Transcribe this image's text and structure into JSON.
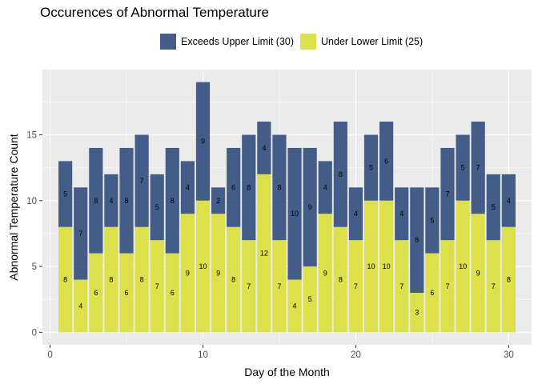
{
  "chart_data": {
    "type": "bar",
    "stacked": true,
    "title": "Occurences of Abnormal Temperature",
    "xlabel": "Day of the Month",
    "ylabel": "Abnormal Temperature Count",
    "x": [
      1,
      2,
      3,
      4,
      5,
      6,
      7,
      8,
      9,
      10,
      11,
      12,
      13,
      14,
      15,
      16,
      17,
      18,
      19,
      20,
      21,
      22,
      23,
      24,
      25,
      26,
      27,
      28,
      29,
      30
    ],
    "xlim": [
      -0.5,
      31.5
    ],
    "ylim": [
      -0.95,
      19.95
    ],
    "xticks": [
      0,
      10,
      20,
      30
    ],
    "yticks": [
      0,
      5,
      10,
      15
    ],
    "grid": true,
    "legend_position": "top",
    "series": [
      {
        "name": "Under Lower Limit (25)",
        "color": "#DCE04A",
        "values": [
          8,
          4,
          6,
          8,
          6,
          8,
          7,
          6,
          9,
          10,
          9,
          8,
          7,
          12,
          7,
          4,
          5,
          9,
          8,
          7,
          10,
          10,
          7,
          3,
          6,
          7,
          10,
          9,
          7,
          8
        ]
      },
      {
        "name": "Exceeds Upper Limit (30)",
        "color": "#435D88",
        "values": [
          5,
          7,
          8,
          4,
          8,
          7,
          5,
          8,
          4,
          9,
          2,
          6,
          8,
          4,
          8,
          10,
          9,
          4,
          8,
          4,
          5,
          6,
          4,
          8,
          5,
          7,
          5,
          7,
          5,
          4
        ]
      }
    ]
  }
}
